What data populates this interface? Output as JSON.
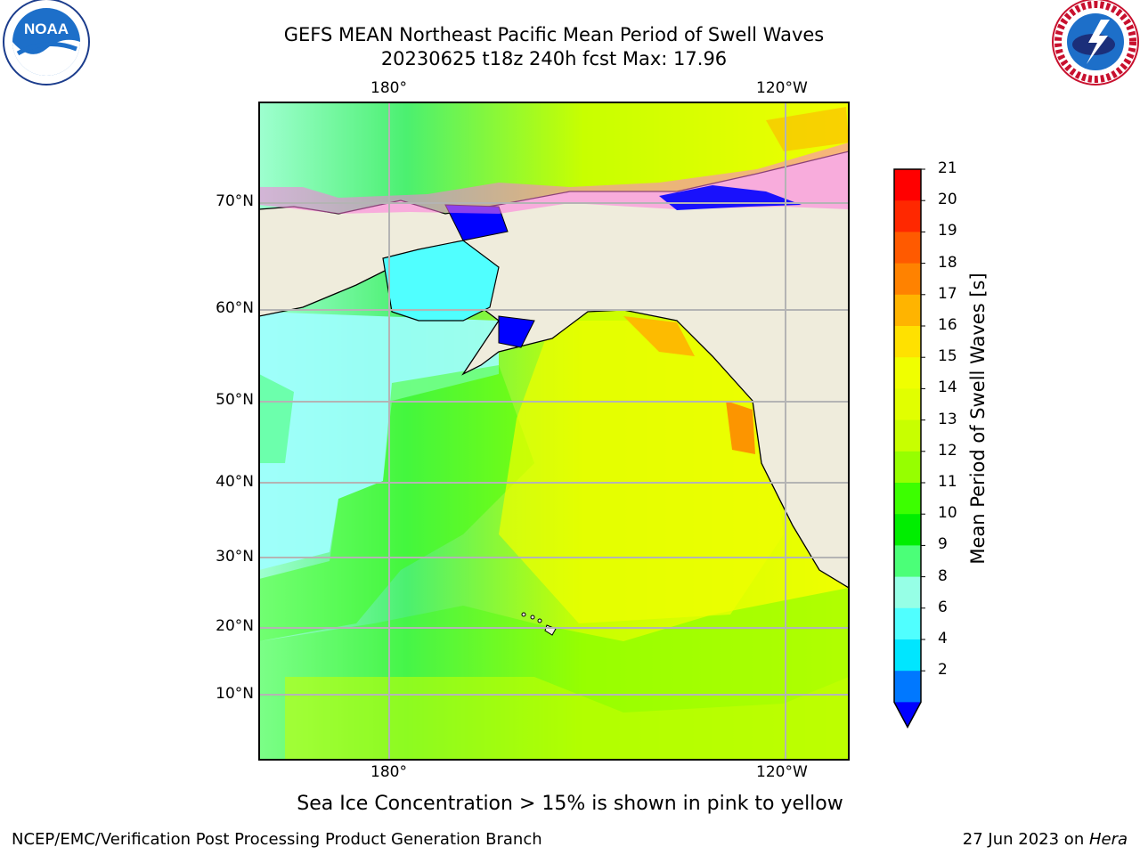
{
  "header": {
    "title_line1": "GEFS MEAN Northeast Pacific Mean Period of Swell Waves",
    "title_line2": "20230625 t18z 240h fcst   Max: 17.96"
  },
  "logos": {
    "left": "noaa-logo",
    "right": "national-weather-service-logo",
    "left_text": "NOAA",
    "right_text": "NATIONAL WEATHER SERVICE"
  },
  "map": {
    "lon_labels_top": [
      "180°",
      "120°W"
    ],
    "lon_labels_bottom": [
      "180°",
      "120°W"
    ],
    "lat_labels": [
      "70°N",
      "60°N",
      "50°N",
      "40°N",
      "30°N",
      "20°N",
      "10°N"
    ],
    "land_color": "#efecdc",
    "grid_color": "#b4b4b4"
  },
  "colorbar": {
    "title": "Mean Period of Swell Waves [s]",
    "ticks": [
      "21",
      "20",
      "19",
      "18",
      "17",
      "16",
      "15",
      "14",
      "13",
      "12",
      "11",
      "10",
      "9",
      "8",
      "6",
      "4",
      "2"
    ],
    "colors": [
      "#ff0000",
      "#ff2800",
      "#ff5a00",
      "#ff8200",
      "#ffb400",
      "#ffe100",
      "#f0ff00",
      "#e1ff00",
      "#c8ff00",
      "#96ff00",
      "#3cff00",
      "#00ee00",
      "#4bff78",
      "#96ffe6",
      "#50ffff",
      "#00e6ff",
      "#0078ff"
    ],
    "extend_color": "#0000ff"
  },
  "note": "Sea Ice Concentration > 15% is shown in pink to yellow",
  "footer": {
    "left": "NCEP/EMC/Verification Post Processing Product Generation Branch",
    "right_date": "27 Jun 2023 on ",
    "right_machine": "Hera"
  }
}
